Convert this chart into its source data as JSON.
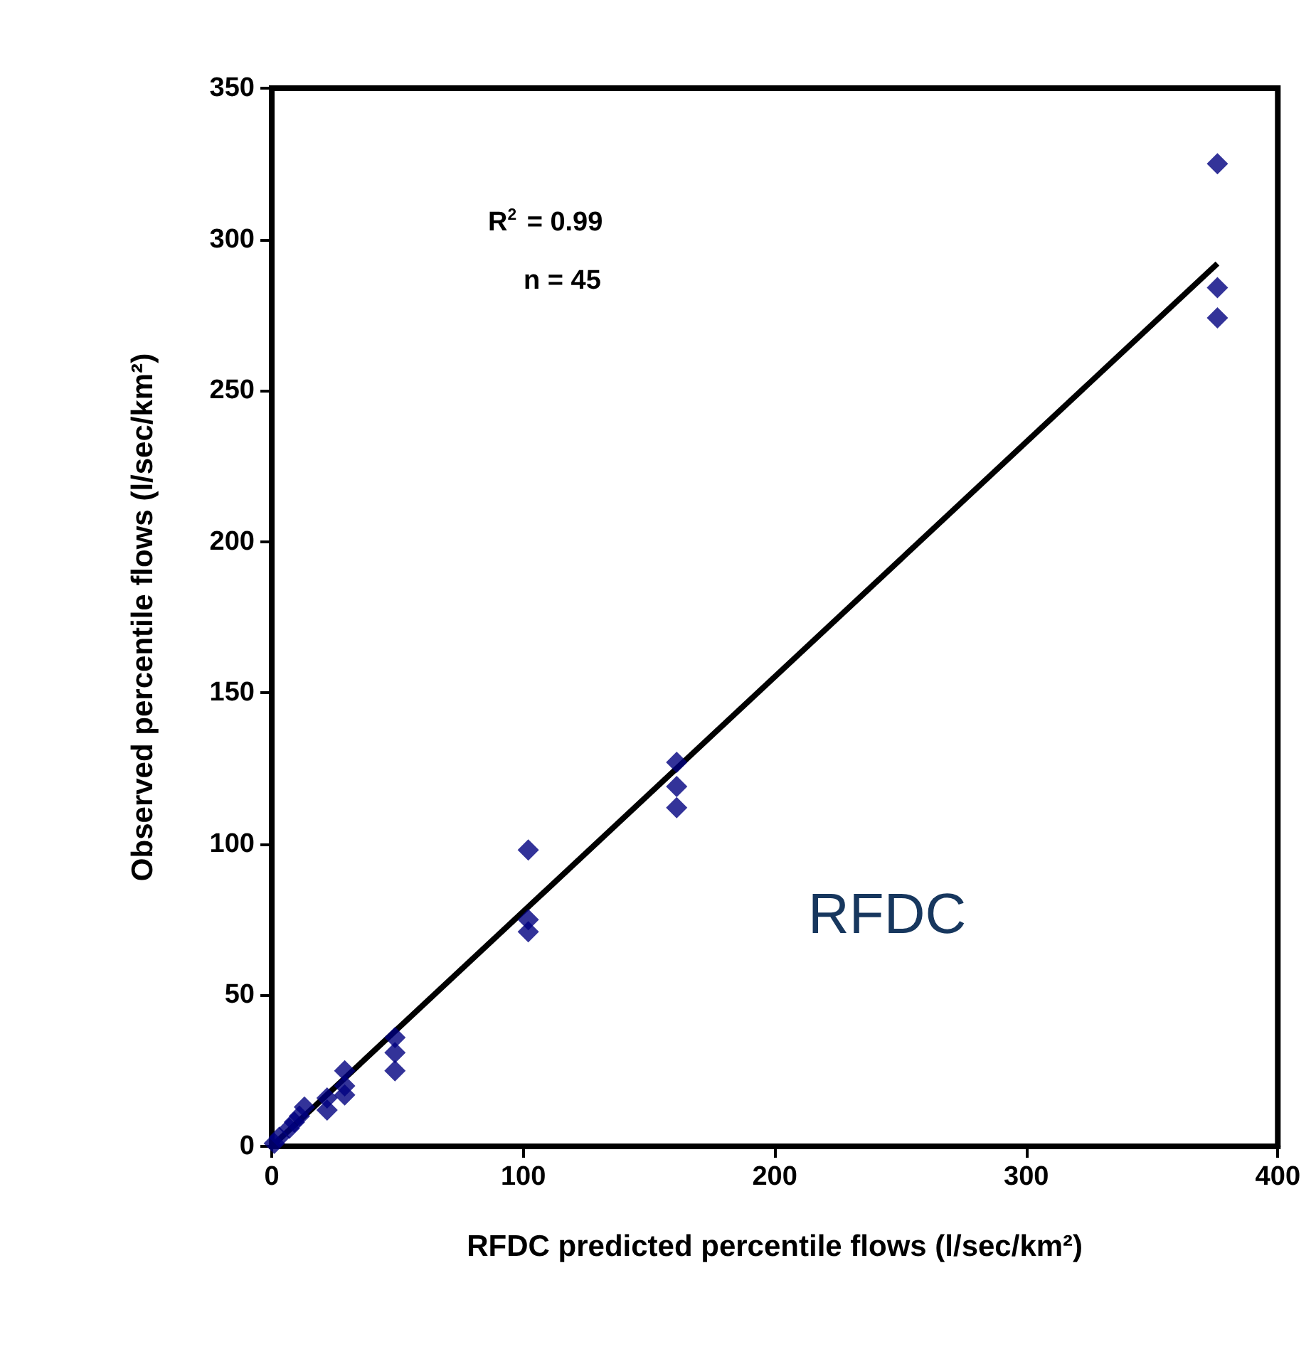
{
  "chart_data": {
    "type": "scatter",
    "xlabel": "RFDC predicted percentile flows (l/sec/km²)",
    "ylabel": "Observed percentile flows (l/sec/km²)",
    "annotations": [
      "R$^{2}$ = 0.99",
      "n = 45",
      "RFDC"
    ],
    "xlim": [
      0,
      400
    ],
    "xticks": [
      0,
      100,
      200,
      300,
      400
    ],
    "ylim": [
      0,
      350
    ],
    "yticks": [
      0,
      50,
      100,
      150,
      200,
      250,
      300,
      350
    ],
    "grid": false,
    "marker": "diamond",
    "series": [
      {
        "color": "#000080",
        "x": [
          376,
          376,
          376,
          161,
          161,
          161,
          102,
          102,
          102,
          49,
          49,
          49,
          29,
          29,
          29,
          22,
          22,
          13,
          11,
          9,
          7,
          5,
          3,
          1
        ],
        "values": [
          325,
          284,
          274,
          127,
          119,
          112,
          98,
          75,
          71,
          36,
          31,
          25,
          25,
          20,
          17,
          16,
          12,
          13,
          10,
          8,
          6,
          null,
          3,
          1
        ]
      },
      {
        "type": "line",
        "color": "#000000",
        "marker": "none",
        "x": [
          0,
          376
        ],
        "values": [
          0,
          292
        ]
      }
    ]
  }
}
